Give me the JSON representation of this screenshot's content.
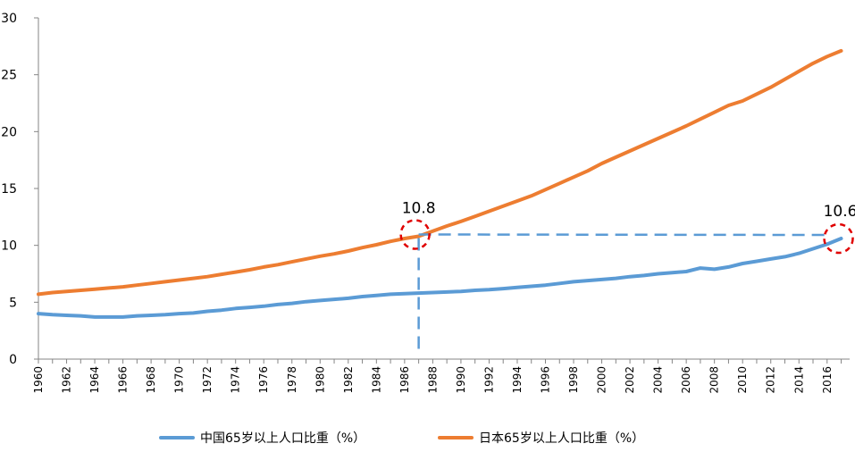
{
  "chart_data": {
    "type": "line",
    "title": "",
    "xlabel": "",
    "ylabel": "",
    "ylim": [
      0,
      30
    ],
    "yticks": [
      "0",
      "5",
      "10",
      "15",
      "20",
      "25",
      "30"
    ],
    "xticks": [
      "1960",
      "1962",
      "1964",
      "1966",
      "1968",
      "1970",
      "1972",
      "1974",
      "1976",
      "1978",
      "1980",
      "1982",
      "1984",
      "1986",
      "1988",
      "1990",
      "1992",
      "1994",
      "1996",
      "1998",
      "2000",
      "2002",
      "2004",
      "2006",
      "2008",
      "2010",
      "2012",
      "2014",
      "2016"
    ],
    "x": [
      1960,
      1961,
      1962,
      1963,
      1964,
      1965,
      1966,
      1967,
      1968,
      1969,
      1970,
      1971,
      1972,
      1973,
      1974,
      1975,
      1976,
      1977,
      1978,
      1979,
      1980,
      1981,
      1982,
      1983,
      1984,
      1985,
      1986,
      1987,
      1988,
      1989,
      1990,
      1991,
      1992,
      1993,
      1994,
      1995,
      1996,
      1997,
      1998,
      1999,
      2000,
      2001,
      2002,
      2003,
      2004,
      2005,
      2006,
      2007,
      2008,
      2009,
      2010,
      2011,
      2012,
      2013,
      2014,
      2015,
      2016,
      2017
    ],
    "series": [
      {
        "name": "中国65岁以上人口比重（%）",
        "color": "#5B9BD5",
        "values": [
          4.0,
          3.9,
          3.85,
          3.8,
          3.7,
          3.7,
          3.7,
          3.8,
          3.85,
          3.9,
          4.0,
          4.05,
          4.2,
          4.3,
          4.45,
          4.55,
          4.65,
          4.8,
          4.9,
          5.05,
          5.15,
          5.25,
          5.35,
          5.5,
          5.6,
          5.7,
          5.75,
          5.8,
          5.85,
          5.9,
          5.95,
          6.05,
          6.1,
          6.2,
          6.3,
          6.4,
          6.5,
          6.65,
          6.8,
          6.9,
          7.0,
          7.1,
          7.25,
          7.35,
          7.5,
          7.6,
          7.7,
          8.0,
          7.9,
          8.1,
          8.4,
          8.6,
          8.8,
          9.0,
          9.3,
          9.7,
          10.1,
          10.6
        ]
      },
      {
        "name": "日本65岁以上人口比重（%）",
        "color": "#ED7D31",
        "values": [
          5.7,
          5.85,
          5.95,
          6.05,
          6.15,
          6.25,
          6.35,
          6.5,
          6.65,
          6.8,
          6.95,
          7.1,
          7.25,
          7.45,
          7.65,
          7.85,
          8.1,
          8.3,
          8.55,
          8.8,
          9.05,
          9.25,
          9.5,
          9.8,
          10.05,
          10.35,
          10.6,
          10.8,
          11.25,
          11.7,
          12.1,
          12.55,
          13.0,
          13.45,
          13.9,
          14.35,
          14.9,
          15.45,
          16.0,
          16.55,
          17.2,
          17.75,
          18.3,
          18.85,
          19.4,
          19.95,
          20.5,
          21.1,
          21.7,
          22.3,
          22.7,
          23.3,
          23.9,
          24.6,
          25.3,
          26.0,
          26.6,
          27.1
        ]
      }
    ],
    "annotations": [
      {
        "label": "10.8",
        "x": 1987,
        "y": 10.8
      },
      {
        "label": "10.6",
        "x": 2017,
        "y": 10.6
      }
    ]
  },
  "legend": {
    "china": "中国65岁以上人口比重（%）",
    "japan": "日本65岁以上人口比重（%）"
  }
}
